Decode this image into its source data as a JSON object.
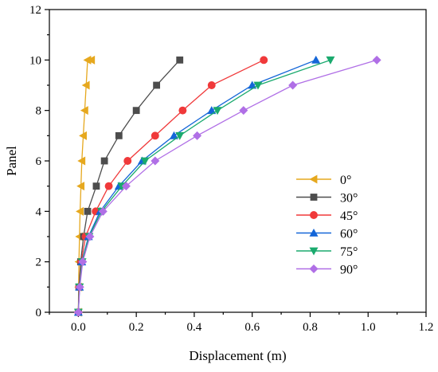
{
  "chart_data": {
    "type": "line",
    "title": "",
    "xlabel": "Displacement (m)",
    "ylabel": "Panel",
    "xlim": [
      -0.1,
      1.2
    ],
    "ylim": [
      0,
      12
    ],
    "xticks": [
      "0.0",
      "0.2",
      "0.4",
      "0.6",
      "0.8",
      "1.0",
      "1.2"
    ],
    "yticks": [
      "0",
      "2",
      "4",
      "6",
      "8",
      "10",
      "12"
    ],
    "grid": false,
    "legend_position": "center-right",
    "series": [
      {
        "name": "0°",
        "color": "#e6a81e",
        "marker": "triangle-left",
        "x": [
          0,
          0.001,
          0.002,
          0.004,
          0.006,
          0.009,
          0.012,
          0.017,
          0.022,
          0.027,
          0.032,
          0.045
        ],
        "y": [
          0,
          1,
          2,
          3,
          4,
          5,
          6,
          7,
          8,
          9,
          10,
          10
        ]
      },
      {
        "name": "30°",
        "color": "#4d4d4d",
        "marker": "square",
        "x": [
          0,
          0.002,
          0.008,
          0.018,
          0.032,
          0.062,
          0.09,
          0.14,
          0.2,
          0.27,
          0.35
        ],
        "y": [
          0,
          1,
          2,
          3,
          4,
          5,
          6,
          7,
          8,
          9,
          10
        ]
      },
      {
        "name": "45°",
        "color": "#f0393a",
        "marker": "circle",
        "x": [
          0,
          0.003,
          0.01,
          0.025,
          0.06,
          0.105,
          0.17,
          0.265,
          0.36,
          0.46,
          0.64
        ],
        "y": [
          0,
          1,
          2,
          3,
          4,
          5,
          6,
          7,
          8,
          9,
          10
        ]
      },
      {
        "name": "60°",
        "color": "#1466d8",
        "marker": "triangle-up",
        "x": [
          0,
          0.004,
          0.012,
          0.035,
          0.075,
          0.14,
          0.22,
          0.33,
          0.46,
          0.6,
          0.82
        ],
        "y": [
          0,
          1,
          2,
          3,
          4,
          5,
          6,
          7,
          8,
          9,
          10
        ]
      },
      {
        "name": "75°",
        "color": "#1aaa6e",
        "marker": "triangle-down",
        "x": [
          0,
          0.004,
          0.013,
          0.037,
          0.08,
          0.15,
          0.23,
          0.35,
          0.48,
          0.62,
          0.87
        ],
        "y": [
          0,
          1,
          2,
          3,
          4,
          5,
          6,
          7,
          8,
          9,
          10
        ]
      },
      {
        "name": "90°",
        "color": "#b06fe6",
        "marker": "diamond",
        "x": [
          0,
          0.005,
          0.015,
          0.04,
          0.085,
          0.165,
          0.265,
          0.41,
          0.57,
          0.74,
          1.03
        ],
        "y": [
          0,
          1,
          2,
          3,
          4,
          5,
          6,
          7,
          8,
          9,
          10
        ]
      }
    ]
  }
}
